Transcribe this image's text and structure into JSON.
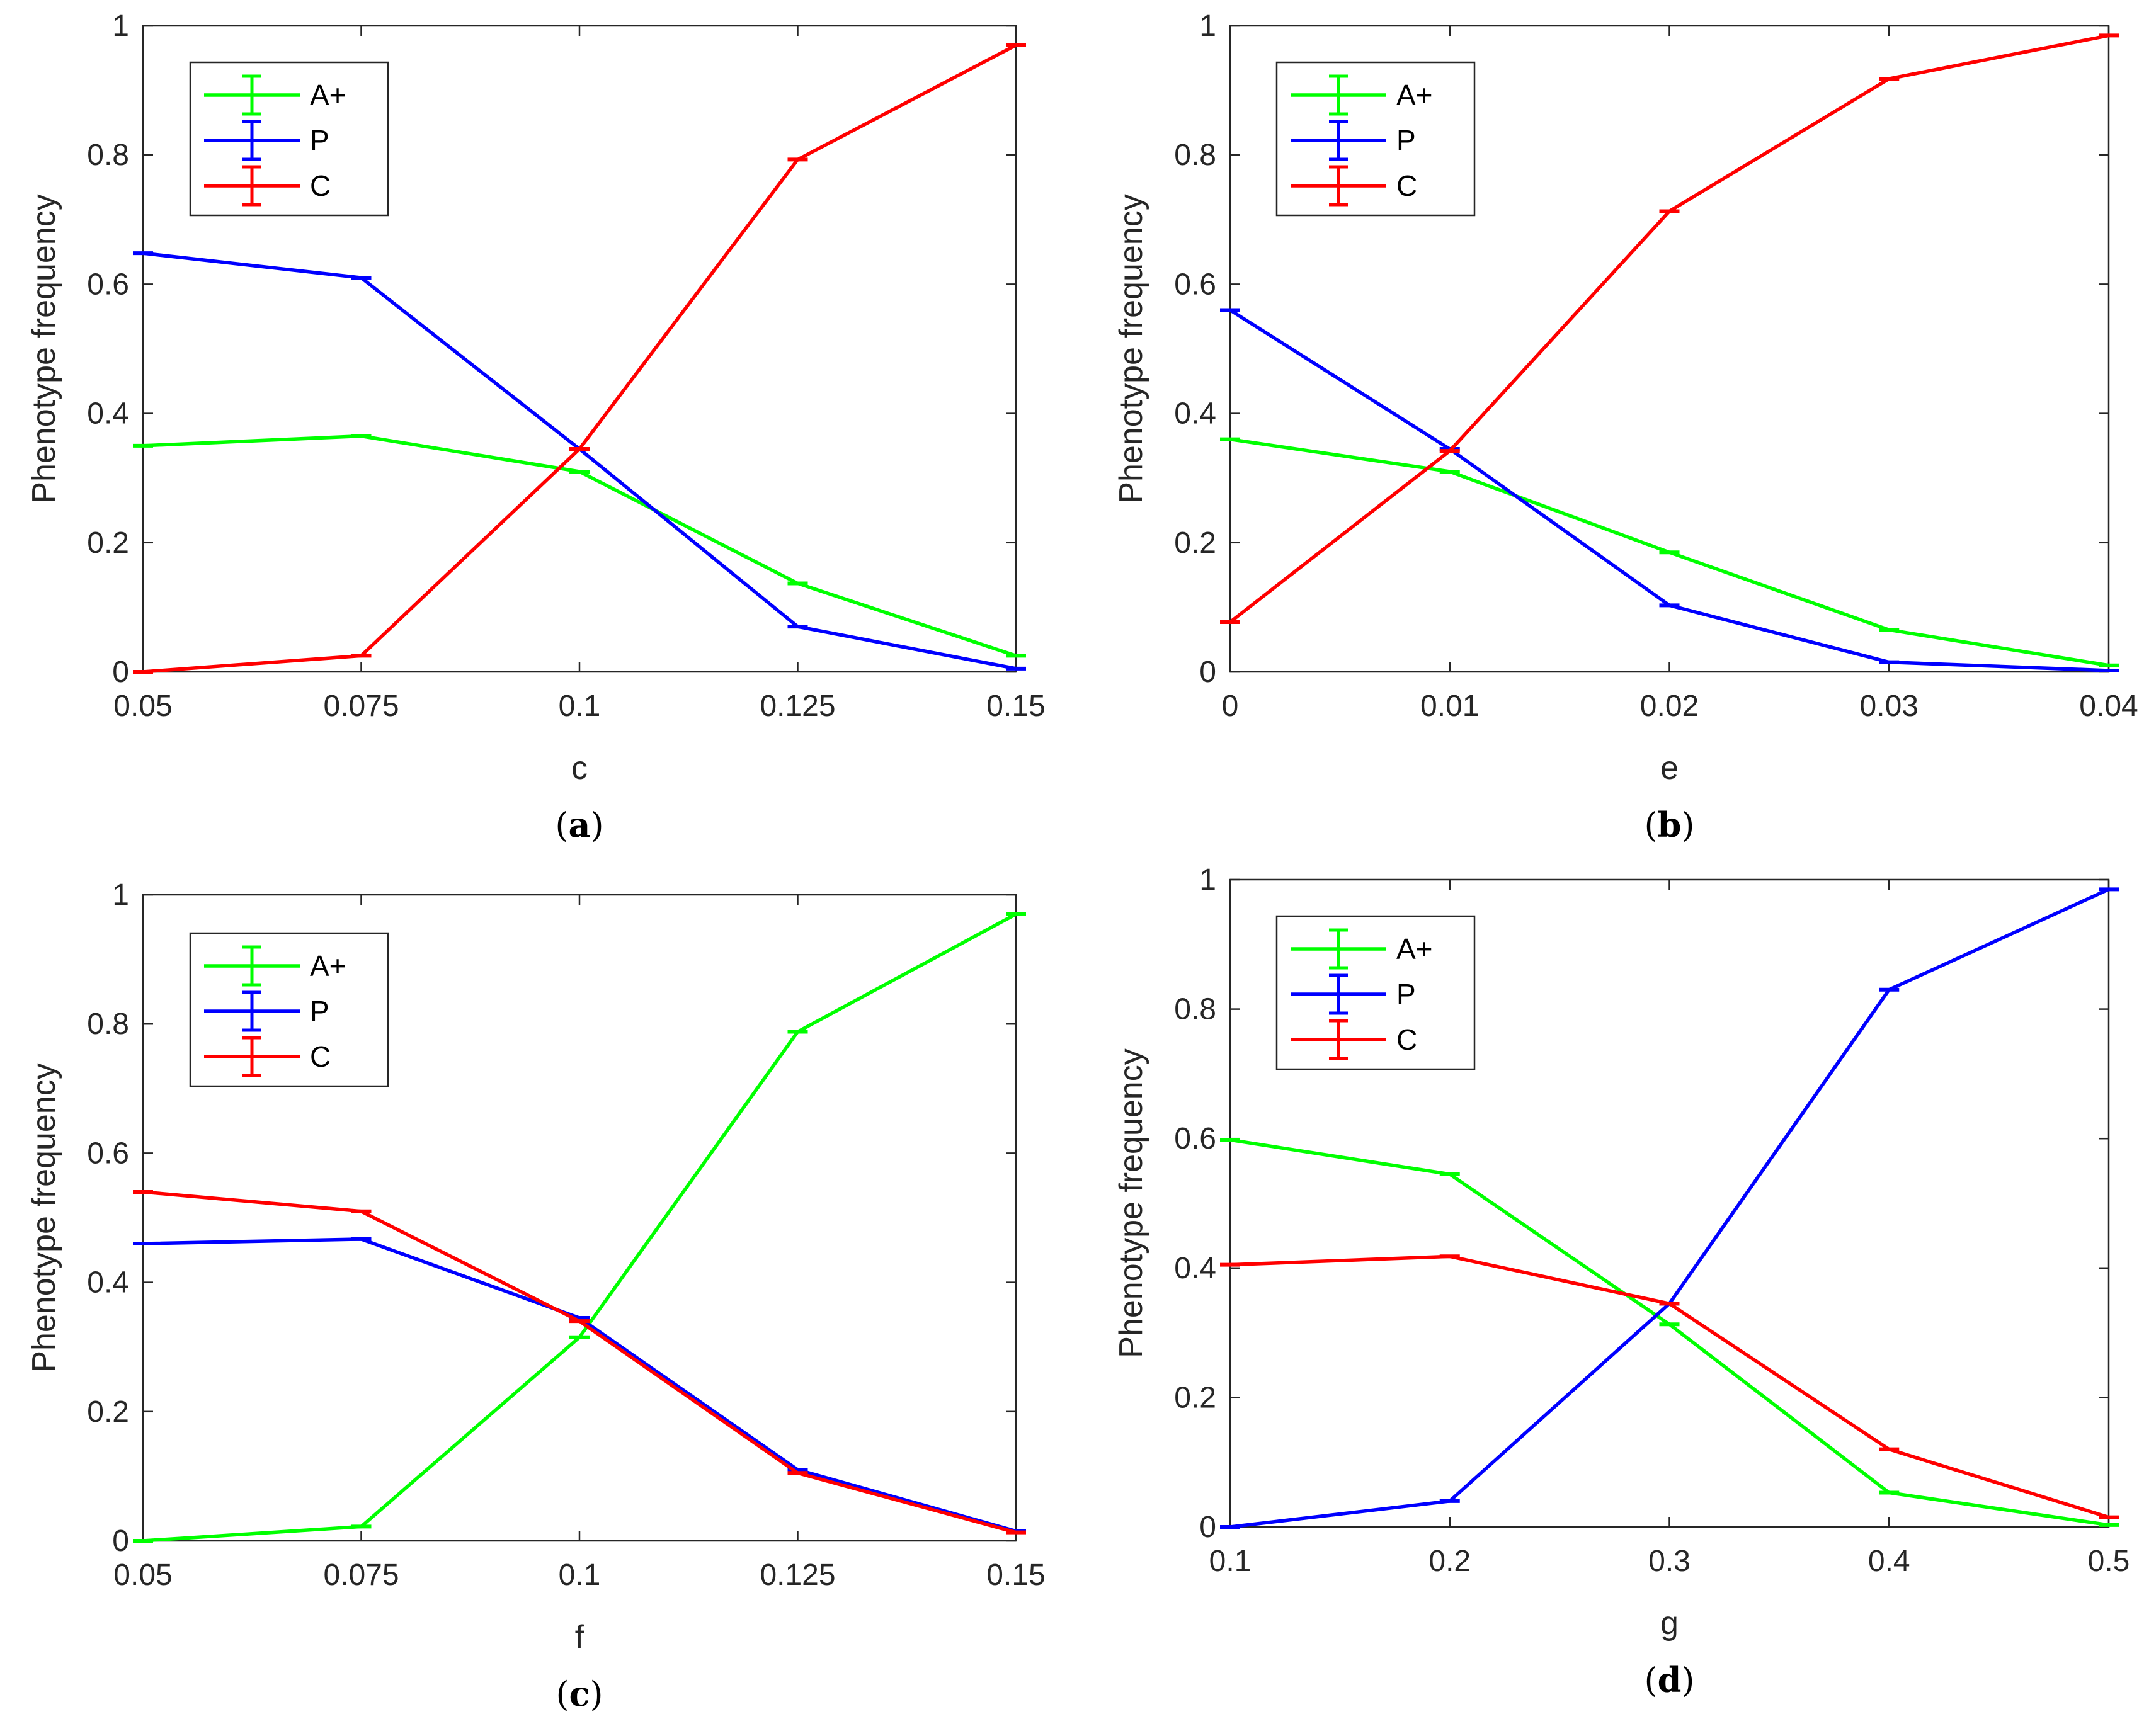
{
  "colors": {
    "A+": "#00ff00",
    "P": "#0000ff",
    "C": "#ff0000",
    "axis": "#262626"
  },
  "chart_data": [
    {
      "type": "line",
      "panel": "a",
      "caption": "(a)",
      "xlabel": "c",
      "ylabel": "Phenotype frequency",
      "x": [
        0.05,
        0.075,
        0.1,
        0.125,
        0.15
      ],
      "xticks": [
        "0.05",
        "0.075",
        "0.1",
        "0.125",
        "0.15"
      ],
      "xlim": [
        0.05,
        0.15
      ],
      "ylim": [
        0,
        1
      ],
      "yticks": [
        "0",
        "0.2",
        "0.4",
        "0.6",
        "0.8",
        "1"
      ],
      "legend_position": "top-left",
      "series": [
        {
          "name": "A+",
          "values": [
            0.35,
            0.365,
            0.31,
            0.137,
            0.025
          ]
        },
        {
          "name": "P",
          "values": [
            0.648,
            0.61,
            0.345,
            0.07,
            0.005
          ]
        },
        {
          "name": "C",
          "values": [
            0.0,
            0.025,
            0.345,
            0.793,
            0.97
          ]
        }
      ]
    },
    {
      "type": "line",
      "panel": "b",
      "caption": "(b)",
      "xlabel": "e",
      "ylabel": "Phenotype frequency",
      "x": [
        0,
        0.01,
        0.02,
        0.03,
        0.04
      ],
      "xticks": [
        "0",
        "0.01",
        "0.02",
        "0.03",
        "0.04"
      ],
      "xlim": [
        0,
        0.04
      ],
      "ylim": [
        0,
        1
      ],
      "yticks": [
        "0",
        "0.2",
        "0.4",
        "0.6",
        "0.8",
        "1"
      ],
      "legend_position": "top-left",
      "series": [
        {
          "name": "A+",
          "values": [
            0.36,
            0.31,
            0.185,
            0.065,
            0.01
          ]
        },
        {
          "name": "P",
          "values": [
            0.56,
            0.345,
            0.103,
            0.015,
            0.002
          ]
        },
        {
          "name": "C",
          "values": [
            0.077,
            0.342,
            0.713,
            0.918,
            0.985
          ]
        }
      ]
    },
    {
      "type": "line",
      "panel": "c",
      "caption": "(c)",
      "xlabel": "f",
      "ylabel": "Phenotype frequency",
      "x": [
        0.05,
        0.075,
        0.1,
        0.125,
        0.15
      ],
      "xticks": [
        "0.05",
        "0.075",
        "0.1",
        "0.125",
        "0.15"
      ],
      "xlim": [
        0.05,
        0.15
      ],
      "ylim": [
        0,
        1
      ],
      "yticks": [
        "0",
        "0.2",
        "0.4",
        "0.6",
        "0.8",
        "1"
      ],
      "legend_position": "top-left",
      "series": [
        {
          "name": "A+",
          "values": [
            0.0,
            0.022,
            0.315,
            0.788,
            0.97
          ]
        },
        {
          "name": "P",
          "values": [
            0.46,
            0.467,
            0.345,
            0.11,
            0.015
          ]
        },
        {
          "name": "C",
          "values": [
            0.54,
            0.51,
            0.34,
            0.105,
            0.013
          ]
        }
      ]
    },
    {
      "type": "line",
      "panel": "d",
      "caption": "(d)",
      "xlabel": "g",
      "ylabel": "Phenotype frequency",
      "x": [
        0.1,
        0.2,
        0.3,
        0.4,
        0.5
      ],
      "xticks": [
        "0.1",
        "0.2",
        "0.3",
        "0.4",
        "0.5"
      ],
      "xlim": [
        0.1,
        0.5
      ],
      "ylim": [
        0,
        1
      ],
      "yticks": [
        "0",
        "0.2",
        "0.4",
        "0.6",
        "0.8",
        "1"
      ],
      "legend_position": "top-left",
      "series": [
        {
          "name": "A+",
          "values": [
            0.598,
            0.545,
            0.313,
            0.053,
            0.003
          ]
        },
        {
          "name": "P",
          "values": [
            0.0,
            0.04,
            0.345,
            0.83,
            0.985
          ]
        },
        {
          "name": "C",
          "values": [
            0.405,
            0.418,
            0.345,
            0.12,
            0.015
          ]
        }
      ]
    }
  ]
}
